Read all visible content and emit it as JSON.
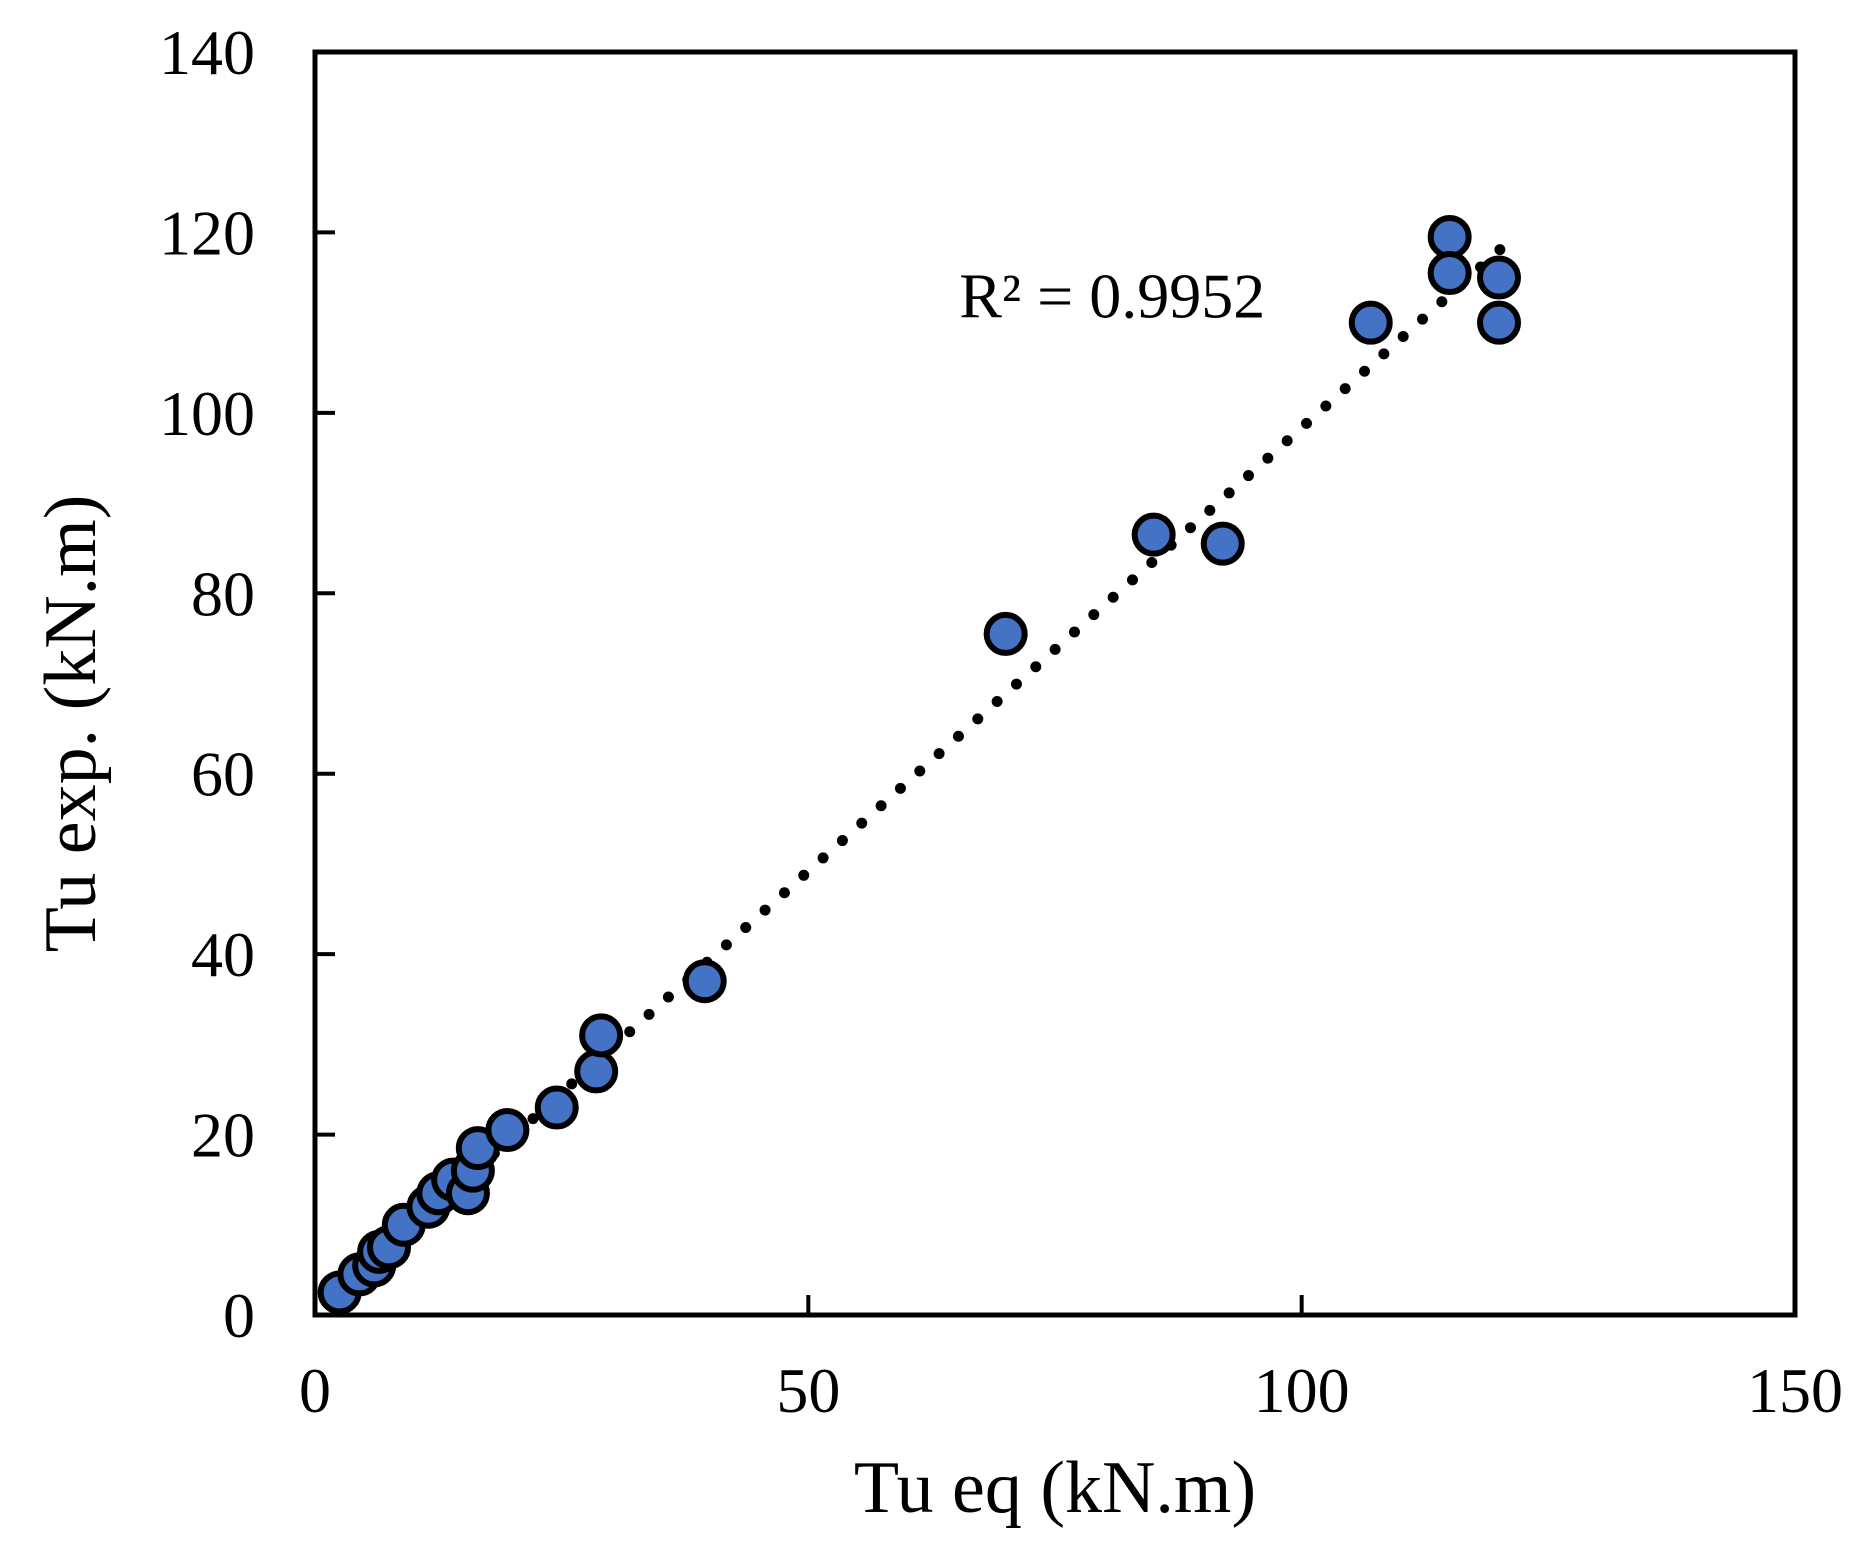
{
  "chart_data": {
    "type": "scatter",
    "xlabel": "Tu eq (kN.m)",
    "ylabel": "Tu exp. (kN.m)",
    "xlim": [
      0,
      150
    ],
    "ylim": [
      0,
      140
    ],
    "xticks": [
      0,
      50,
      100,
      150
    ],
    "yticks": [
      0,
      20,
      40,
      60,
      80,
      100,
      120,
      140
    ],
    "grid": false,
    "legend": "none",
    "annotation": "R² = 0.9952",
    "marker_color": "#4472C4",
    "marker_edge_color": "#000000",
    "trendline": {
      "style": "dotted",
      "color": "#000000",
      "x": [
        2.5,
        120.5
      ],
      "y": [
        2.5,
        118.5
      ]
    },
    "x": [
      2.5,
      4.5,
      6,
      6.5,
      7.5,
      9,
      11.5,
      12.5,
      14,
      15.5,
      16,
      16.5,
      19.5,
      24.5,
      28.5,
      29,
      39.5,
      70,
      85,
      92,
      107,
      115,
      115,
      120,
      120
    ],
    "y": [
      2.5,
      4.5,
      5.5,
      7,
      7.5,
      10,
      12,
      13.5,
      15,
      13.5,
      16,
      18.5,
      20.5,
      23,
      27,
      31,
      37,
      75.5,
      86.5,
      85.5,
      110,
      119.5,
      115.5,
      115,
      110
    ]
  }
}
